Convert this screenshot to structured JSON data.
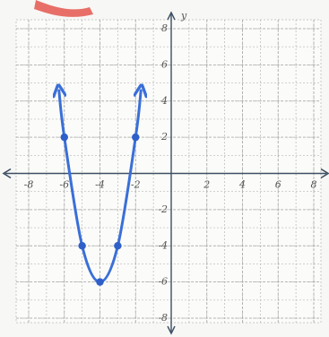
{
  "chart_data": {
    "type": "line",
    "ylabel": "y",
    "x": [
      -6.3,
      -6,
      -5,
      -4,
      -3,
      -2,
      -1.7
    ],
    "series": [
      {
        "type": "line",
        "color": "#3a6fd8",
        "values": [
          4.58,
          2,
          -4,
          -6,
          -4,
          2,
          4.58
        ]
      },
      {
        "type": "scatter",
        "color": "#2f5fc8",
        "x": [
          -6,
          -5,
          -4,
          -3,
          -2
        ],
        "values": [
          2,
          -4,
          -6,
          -4,
          2
        ]
      }
    ],
    "xlim": [
      -8,
      8
    ],
    "ylim": [
      -8,
      8
    ],
    "xticks": [
      -8,
      -6,
      -4,
      -2,
      2,
      4,
      6,
      8
    ],
    "yticks": [
      8,
      6,
      4,
      2,
      -2,
      -4,
      -6,
      -8
    ],
    "grid": true
  }
}
